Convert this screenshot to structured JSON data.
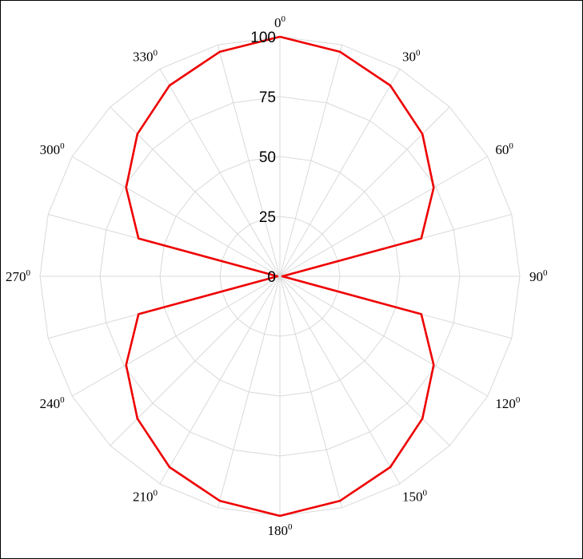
{
  "chart_data": {
    "type": "polar-line",
    "title": "",
    "direction": "clockwise",
    "zero_location": "top",
    "angle_ticks": [
      {
        "deg": 0,
        "base": "0",
        "sup": "0"
      },
      {
        "deg": 30,
        "base": "30",
        "sup": "0"
      },
      {
        "deg": 60,
        "base": "60",
        "sup": "0"
      },
      {
        "deg": 90,
        "base": "90",
        "sup": "0"
      },
      {
        "deg": 120,
        "base": "120",
        "sup": "0"
      },
      {
        "deg": 150,
        "base": "150",
        "sup": "0"
      },
      {
        "deg": 180,
        "base": "180",
        "sup": "0"
      },
      {
        "deg": 210,
        "base": "210",
        "sup": "0"
      },
      {
        "deg": 240,
        "base": "240",
        "sup": "0"
      },
      {
        "deg": 270,
        "base": "270",
        "sup": "0"
      },
      {
        "deg": 300,
        "base": "300",
        "sup": "0"
      },
      {
        "deg": 330,
        "base": "330",
        "sup": "0"
      }
    ],
    "radial_ticks": [
      "0",
      "25",
      "50",
      "75",
      "100"
    ],
    "radial_tick_values": [
      0,
      25,
      50,
      75,
      100
    ],
    "rlim": [
      0,
      100
    ],
    "spoke_step_deg": 15,
    "grid": true,
    "series": [
      {
        "color": "#ee0000",
        "theta": [
          0,
          15,
          30,
          45,
          60,
          75,
          90,
          105,
          120,
          135,
          150,
          165,
          180,
          195,
          210,
          225,
          240,
          255,
          270,
          285,
          300,
          315,
          330,
          345,
          360
        ],
        "r": [
          100,
          97,
          92,
          84,
          74,
          61,
          1,
          61,
          74,
          84,
          92,
          97,
          100,
          97,
          92,
          84,
          74,
          61,
          1,
          61,
          74,
          84,
          92,
          97,
          100
        ]
      }
    ]
  }
}
